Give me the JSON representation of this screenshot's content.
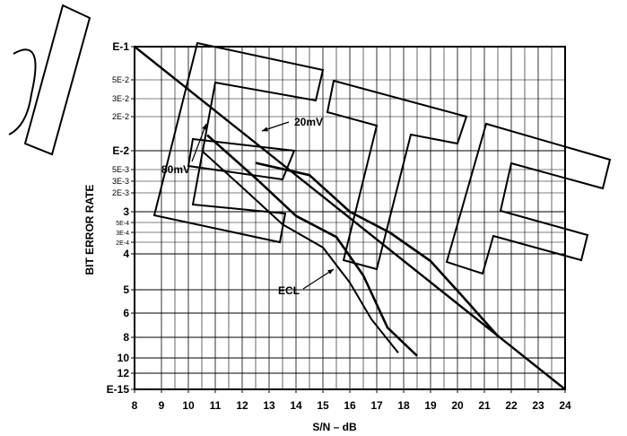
{
  "chart_data": {
    "type": "line",
    "xlabel": "S/N – dB",
    "ylabel": "BIT ERROR RATE",
    "xlim": [
      8,
      24
    ],
    "x_ticks": [
      "8",
      "9",
      "10",
      "11",
      "12",
      "13",
      "14",
      "15",
      "16",
      "17",
      "18",
      "19",
      "20",
      "21",
      "22",
      "23",
      "24"
    ],
    "y_ticks": [
      {
        "label": "E-1",
        "size": "large"
      },
      {
        "label": "5E-2",
        "size": "small"
      },
      {
        "label": "3E-2",
        "size": "small"
      },
      {
        "label": "2E-2",
        "size": "small"
      },
      {
        "label": "E-2",
        "size": "large"
      },
      {
        "label": "5E-3",
        "size": "small"
      },
      {
        "label": "3E-3",
        "size": "small"
      },
      {
        "label": "2E-3",
        "size": "small"
      },
      {
        "label": "3",
        "size": "large"
      },
      {
        "label": "5E-4",
        "size": "tiny"
      },
      {
        "label": "3E-4",
        "size": "tiny"
      },
      {
        "label": "2E-4",
        "size": "tiny"
      },
      {
        "label": "4",
        "size": "large"
      },
      {
        "label": "5",
        "size": "large"
      },
      {
        "label": "6",
        "size": "large"
      },
      {
        "label": "8",
        "size": "large"
      },
      {
        "label": "10",
        "size": "large"
      },
      {
        "label": "12",
        "size": "large"
      },
      {
        "label": "E-15",
        "size": "large"
      }
    ],
    "series": [
      {
        "name": "",
        "points": [
          [
            8.0,
            1.0
          ],
          [
            24.0,
            15.0
          ]
        ]
      },
      {
        "name": "20mV",
        "points": [
          [
            12.5,
            2.2
          ],
          [
            14.5,
            2.4
          ],
          [
            16.0,
            3.0
          ],
          [
            17.5,
            3.5
          ],
          [
            19.0,
            4.2
          ],
          [
            20.2,
            5.3
          ],
          [
            21.5,
            7.9
          ]
        ]
      },
      {
        "name": "",
        "points": [
          [
            10.7,
            1.85
          ],
          [
            12.5,
            2.45
          ],
          [
            14.0,
            3.1
          ],
          [
            15.5,
            3.6
          ],
          [
            16.5,
            4.6
          ],
          [
            17.4,
            7.2
          ],
          [
            18.5,
            9.8
          ]
        ]
      },
      {
        "name": "80mV",
        "points": [
          [
            10.5,
            2.0
          ],
          [
            12.0,
            2.6
          ],
          [
            13.5,
            3.3
          ],
          [
            15.0,
            3.85
          ],
          [
            16.0,
            4.8
          ],
          [
            16.8,
            6.5
          ],
          [
            17.8,
            9.5
          ]
        ]
      }
    ],
    "annotations": [
      "20mV",
      "80mV",
      "ECL"
    ],
    "watermark": "OBSOLETE"
  }
}
